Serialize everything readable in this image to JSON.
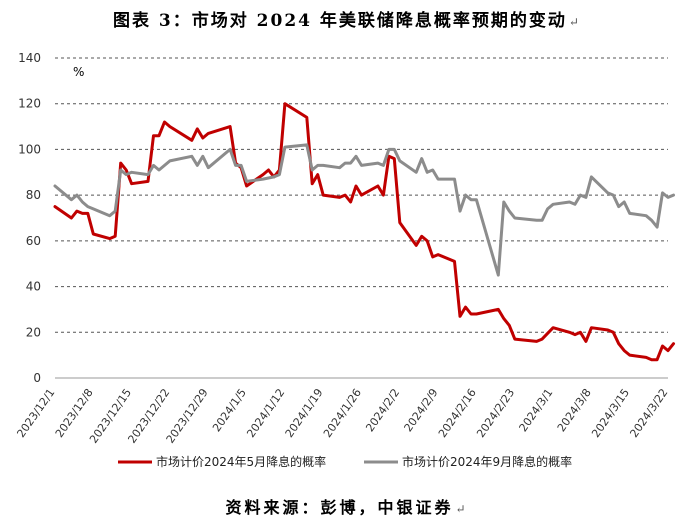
{
  "title": "图表 3：市场对 2024 年美联储降息概率预期的变动",
  "title_mark": "↵",
  "source": "资料来源：彭博，中银证券",
  "source_mark": "↵",
  "chart_data": {
    "type": "line",
    "unit": "%",
    "ylim": [
      0,
      140
    ],
    "yticks": [
      0,
      20,
      40,
      60,
      80,
      100,
      120,
      140
    ],
    "grid": "horizontal dashed",
    "legend_position": "bottom",
    "x_range": [
      "2023/12/1",
      "2024/3/22"
    ],
    "xtick_labels": [
      "2023/12/1",
      "2023/12/8",
      "2023/12/15",
      "2023/12/22",
      "2023/12/29",
      "2024/1/5",
      "2024/1/12",
      "2024/1/19",
      "2024/1/26",
      "2024/2/2",
      "2024/2/9",
      "2024/2/16",
      "2024/2/23",
      "2024/3/1",
      "2024/3/8",
      "2024/3/15",
      "2024/3/22"
    ],
    "series": [
      {
        "name": "市场计价2024年5月降息的概率",
        "color": "#c00000",
        "points": [
          [
            "2023/12/1",
            75
          ],
          [
            "2023/12/4",
            70
          ],
          [
            "2023/12/5",
            73
          ],
          [
            "2023/12/6",
            72
          ],
          [
            "2023/12/7",
            72
          ],
          [
            "2023/12/8",
            63
          ],
          [
            "2023/12/11",
            61
          ],
          [
            "2023/12/12",
            62
          ],
          [
            "2023/12/13",
            94
          ],
          [
            "2023/12/14",
            91
          ],
          [
            "2023/12/15",
            85
          ],
          [
            "2023/12/18",
            86
          ],
          [
            "2023/12/19",
            106
          ],
          [
            "2023/12/20",
            106
          ],
          [
            "2023/12/21",
            112
          ],
          [
            "2023/12/22",
            110
          ],
          [
            "2023/12/26",
            104
          ],
          [
            "2023/12/27",
            109
          ],
          [
            "2023/12/28",
            105
          ],
          [
            "2023/12/29",
            107
          ],
          [
            "2024/1/2",
            110
          ],
          [
            "2024/1/3",
            94
          ],
          [
            "2024/1/4",
            92
          ],
          [
            "2024/1/5",
            84
          ],
          [
            "2024/1/8",
            89
          ],
          [
            "2024/1/9",
            91
          ],
          [
            "2024/1/10",
            88
          ],
          [
            "2024/1/11",
            91
          ],
          [
            "2024/1/12",
            120
          ],
          [
            "2024/1/16",
            114
          ],
          [
            "2024/1/17",
            85
          ],
          [
            "2024/1/18",
            89
          ],
          [
            "2024/1/19",
            80
          ],
          [
            "2024/1/22",
            79
          ],
          [
            "2024/1/23",
            80
          ],
          [
            "2024/1/24",
            77
          ],
          [
            "2024/1/25",
            84
          ],
          [
            "2024/1/26",
            80
          ],
          [
            "2024/1/29",
            84
          ],
          [
            "2024/1/30",
            80
          ],
          [
            "2024/1/31",
            97
          ],
          [
            "2024/2/1",
            96
          ],
          [
            "2024/2/2",
            68
          ],
          [
            "2024/2/5",
            58
          ],
          [
            "2024/2/6",
            62
          ],
          [
            "2024/2/7",
            60
          ],
          [
            "2024/2/8",
            53
          ],
          [
            "2024/2/9",
            54
          ],
          [
            "2024/2/12",
            51
          ],
          [
            "2024/2/13",
            27
          ],
          [
            "2024/2/14",
            31
          ],
          [
            "2024/2/15",
            28
          ],
          [
            "2024/2/16",
            28
          ],
          [
            "2024/2/20",
            30
          ],
          [
            "2024/2/21",
            26
          ],
          [
            "2024/2/22",
            23
          ],
          [
            "2024/2/23",
            17
          ],
          [
            "2024/2/27",
            16
          ],
          [
            "2024/2/28",
            17
          ],
          [
            "2024/3/1",
            22
          ],
          [
            "2024/3/4",
            20
          ],
          [
            "2024/3/5",
            19
          ],
          [
            "2024/3/6",
            20
          ],
          [
            "2024/3/7",
            16
          ],
          [
            "2024/3/8",
            22
          ],
          [
            "2024/3/11",
            21
          ],
          [
            "2024/3/12",
            20
          ],
          [
            "2024/3/13",
            15
          ],
          [
            "2024/3/14",
            12
          ],
          [
            "2024/3/15",
            10
          ],
          [
            "2024/3/18",
            9
          ],
          [
            "2024/3/19",
            8
          ],
          [
            "2024/3/20",
            8
          ],
          [
            "2024/3/21",
            14
          ],
          [
            "2024/3/22",
            12
          ],
          [
            "2024/3/23",
            15
          ]
        ]
      },
      {
        "name": "市场计价2024年9月降息的概率",
        "color": "#8c8c8c",
        "points": [
          [
            "2023/12/1",
            84
          ],
          [
            "2023/12/4",
            78
          ],
          [
            "2023/12/5",
            80
          ],
          [
            "2023/12/6",
            77
          ],
          [
            "2023/12/7",
            75
          ],
          [
            "2023/12/8",
            74
          ],
          [
            "2023/12/11",
            71
          ],
          [
            "2023/12/12",
            73
          ],
          [
            "2023/12/13",
            91
          ],
          [
            "2023/12/14",
            89
          ],
          [
            "2023/12/15",
            90
          ],
          [
            "2023/12/18",
            89
          ],
          [
            "2023/12/19",
            93
          ],
          [
            "2023/12/20",
            91
          ],
          [
            "2023/12/22",
            95
          ],
          [
            "2023/12/26",
            97
          ],
          [
            "2023/12/27",
            93
          ],
          [
            "2023/12/28",
            97
          ],
          [
            "2023/12/29",
            92
          ],
          [
            "2024/1/2",
            100
          ],
          [
            "2024/1/3",
            93
          ],
          [
            "2024/1/4",
            93
          ],
          [
            "2024/1/5",
            86
          ],
          [
            "2024/1/8",
            87
          ],
          [
            "2024/1/10",
            88
          ],
          [
            "2024/1/11",
            89
          ],
          [
            "2024/1/12",
            101
          ],
          [
            "2024/1/16",
            102
          ],
          [
            "2024/1/17",
            91
          ],
          [
            "2024/1/18",
            93
          ],
          [
            "2024/1/19",
            93
          ],
          [
            "2024/1/22",
            92
          ],
          [
            "2024/1/23",
            94
          ],
          [
            "2024/1/24",
            94
          ],
          [
            "2024/1/25",
            97
          ],
          [
            "2024/1/26",
            93
          ],
          [
            "2024/1/29",
            94
          ],
          [
            "2024/1/30",
            93
          ],
          [
            "2024/1/31",
            100
          ],
          [
            "2024/2/1",
            100
          ],
          [
            "2024/2/2",
            95
          ],
          [
            "2024/2/5",
            90
          ],
          [
            "2024/2/6",
            96
          ],
          [
            "2024/2/7",
            90
          ],
          [
            "2024/2/8",
            91
          ],
          [
            "2024/2/9",
            87
          ],
          [
            "2024/2/12",
            87
          ],
          [
            "2024/2/13",
            73
          ],
          [
            "2024/2/14",
            80
          ],
          [
            "2024/2/15",
            78
          ],
          [
            "2024/2/16",
            78
          ],
          [
            "2024/2/20",
            45
          ],
          [
            "2024/2/21",
            77
          ],
          [
            "2024/2/22",
            73
          ],
          [
            "2024/2/23",
            70
          ],
          [
            "2024/2/27",
            69
          ],
          [
            "2024/2/28",
            69
          ],
          [
            "2024/2/29",
            74
          ],
          [
            "2024/3/1",
            76
          ],
          [
            "2024/3/4",
            77
          ],
          [
            "2024/3/5",
            76
          ],
          [
            "2024/3/6",
            80
          ],
          [
            "2024/3/7",
            79
          ],
          [
            "2024/3/8",
            88
          ],
          [
            "2024/3/11",
            81
          ],
          [
            "2024/3/12",
            80
          ],
          [
            "2024/3/13",
            75
          ],
          [
            "2024/3/14",
            77
          ],
          [
            "2024/3/15",
            72
          ],
          [
            "2024/3/18",
            71
          ],
          [
            "2024/3/19",
            69
          ],
          [
            "2024/3/20",
            66
          ],
          [
            "2024/3/21",
            81
          ],
          [
            "2024/3/22",
            79
          ],
          [
            "2024/3/23",
            80
          ]
        ]
      }
    ]
  }
}
